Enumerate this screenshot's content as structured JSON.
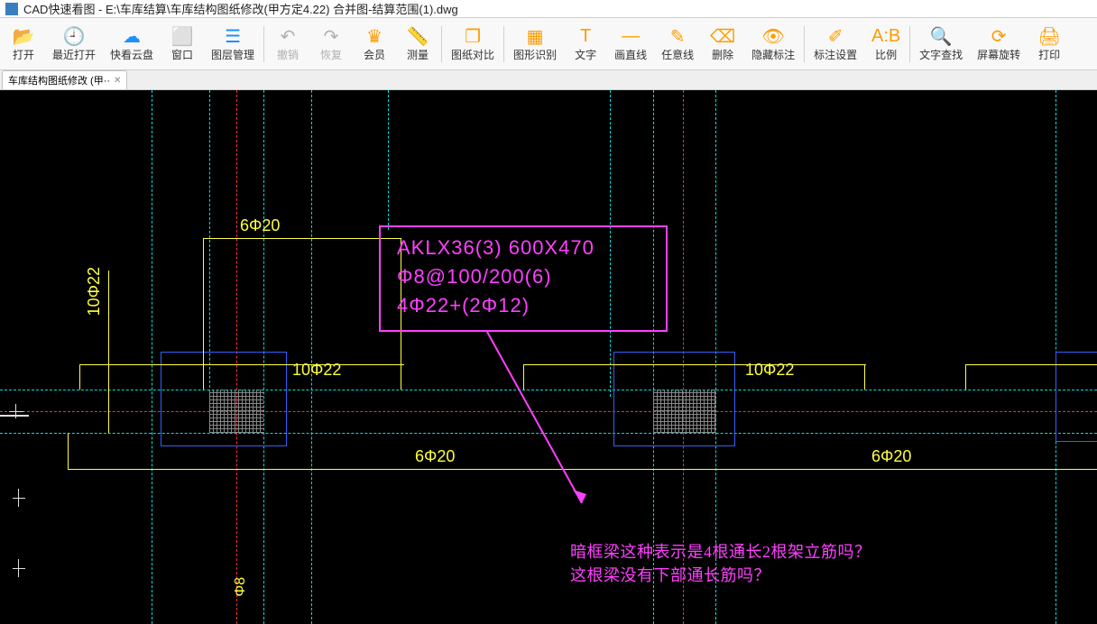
{
  "title": "CAD快速看图 - E:\\车库结算\\车库结构图纸修改(甲方定4.22) 合并图-结算范围(1).dwg",
  "toolbar": [
    {
      "id": "open",
      "label": "打开",
      "color": "#1e90ff"
    },
    {
      "id": "recent",
      "label": "最近打开",
      "color": "#1e90ff"
    },
    {
      "id": "cloud",
      "label": "快看云盘",
      "color": "#1e90ff"
    },
    {
      "id": "window",
      "label": "窗口",
      "color": "#1e90ff"
    },
    {
      "id": "layer",
      "label": "图层管理",
      "color": "#1e90ff"
    },
    {
      "sep": true
    },
    {
      "id": "undo",
      "label": "撤销",
      "color": "#b0b0b0",
      "disabled": true
    },
    {
      "id": "redo",
      "label": "恢复",
      "color": "#b0b0b0",
      "disabled": true
    },
    {
      "id": "vip",
      "label": "会员",
      "color": "#ff9c00"
    },
    {
      "id": "measure",
      "label": "测量",
      "color": "#1e90ff"
    },
    {
      "sep": true
    },
    {
      "id": "compare",
      "label": "图纸对比",
      "color": "#ff9c00"
    },
    {
      "sep": true
    },
    {
      "id": "recognize",
      "label": "图形识别",
      "color": "#ff9c00"
    },
    {
      "id": "text",
      "label": "文字",
      "color": "#ff9c00"
    },
    {
      "id": "line",
      "label": "画直线",
      "color": "#ff9c00"
    },
    {
      "id": "anyline",
      "label": "任意线",
      "color": "#ff9c00"
    },
    {
      "id": "delete",
      "label": "删除",
      "color": "#ff9c00"
    },
    {
      "id": "hide",
      "label": "隐藏标注",
      "color": "#ff9c00"
    },
    {
      "sep": true
    },
    {
      "id": "markset",
      "label": "标注设置",
      "color": "#ff9c00"
    },
    {
      "id": "ratio",
      "label": "比例",
      "color": "#ff9c00"
    },
    {
      "sep": true
    },
    {
      "id": "find",
      "label": "文字查找",
      "color": "#ff9c00"
    },
    {
      "id": "rotate",
      "label": "屏幕旋转",
      "color": "#ff9c00"
    },
    {
      "id": "print",
      "label": "打印",
      "color": "#ff9c00"
    }
  ],
  "tab": {
    "label": "车库结构图纸修改 (甲··"
  },
  "beam": {
    "line1": "AKLX36(3) 600X470",
    "line2": "Φ8@100/200(6)",
    "line3": "4Φ22+(2Φ12)"
  },
  "rebar": {
    "top_left": "6Φ20",
    "vert_left": "10Φ22",
    "dim_left": "10Φ22",
    "mid_bot": "6Φ20",
    "dim_right": "10Φ22",
    "bot_right": "6Φ20",
    "far_left_bot": "Φ8"
  },
  "question": {
    "q1": "暗框梁这种表示是4根通长2根架立筋吗？",
    "q2": "这根梁没有下部通长筋吗？"
  },
  "colors": {
    "cyan": "#00e0e0",
    "red": "#ff3030",
    "blue": "#3060ff",
    "yellow": "#ffff40",
    "magenta": "#ff40ff",
    "white": "#e0e0e0",
    "bg": "#000000"
  }
}
